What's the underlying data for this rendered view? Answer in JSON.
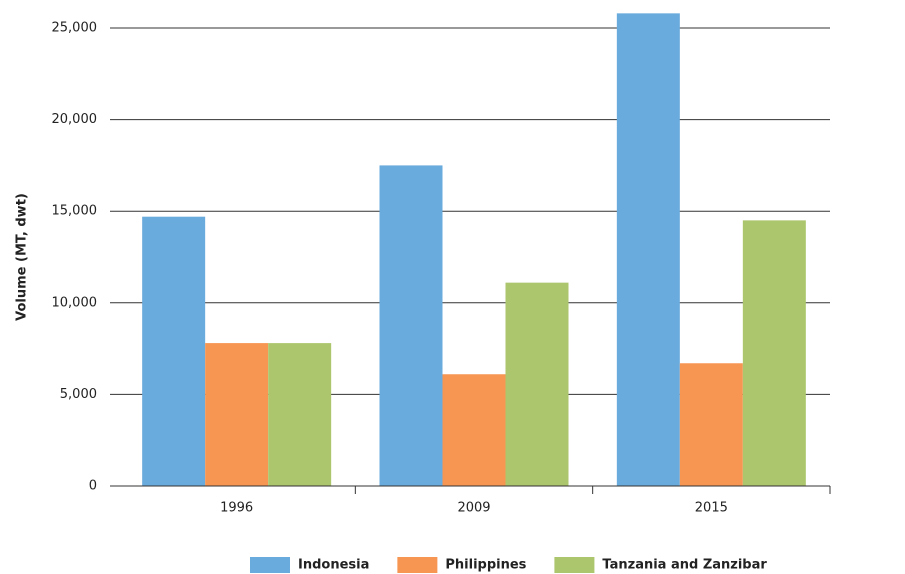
{
  "chart_data": {
    "type": "bar",
    "y_label": "Volume (MT, dwt)",
    "categories": [
      "1996",
      "2009",
      "2015"
    ],
    "series": [
      {
        "name": "Indonesia",
        "color": "#6aabdd",
        "values": [
          14700,
          17500,
          25800
        ]
      },
      {
        "name": "Philippines",
        "color": "#f79552",
        "values": [
          7800,
          6100,
          6700
        ]
      },
      {
        "name": "Tanzania and Zanzibar",
        "color": "#acc66d",
        "values": [
          7800,
          11100,
          14500
        ]
      }
    ],
    "ylim": [
      0,
      25000
    ],
    "yticks": [
      0,
      {
        "value": 5000,
        "label": "5,000"
      },
      {
        "value": 10000,
        "label": "10,000"
      },
      {
        "value": 15000,
        "label": "15,000"
      },
      {
        "value": 20000,
        "label": "20,000"
      },
      {
        "value": 25000,
        "label": "25,000"
      }
    ],
    "grid": true,
    "legend": "bottom"
  }
}
